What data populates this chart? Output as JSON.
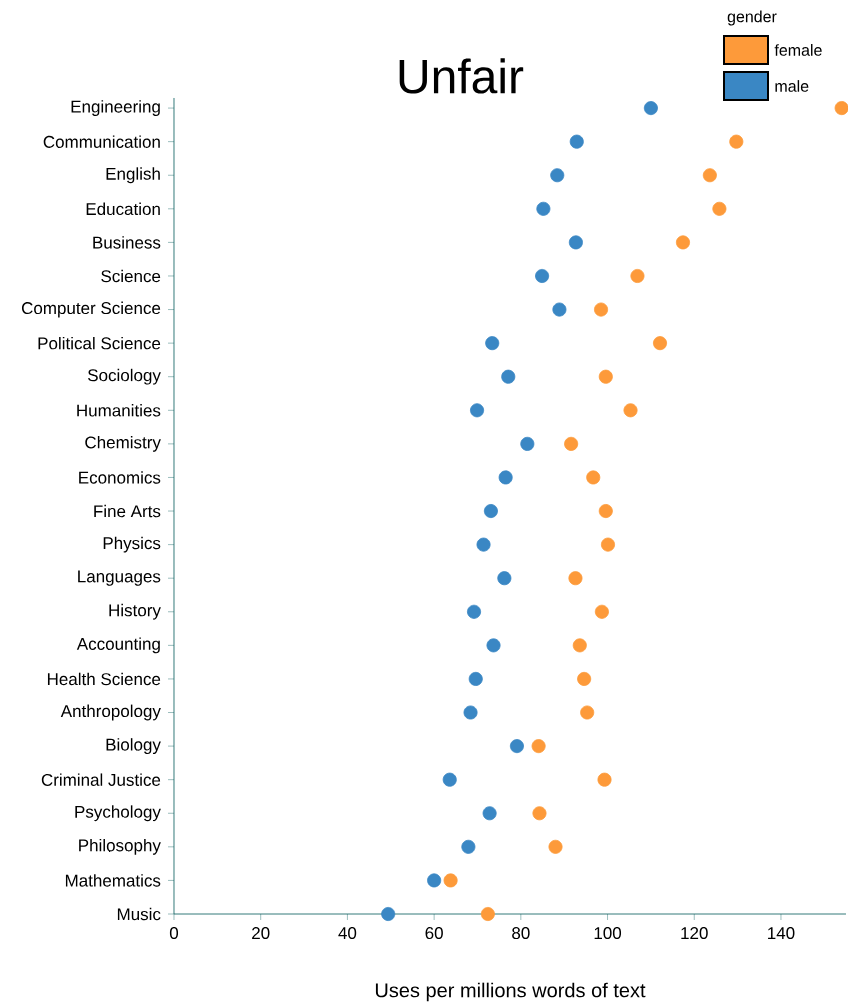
{
  "chart_data": {
    "type": "scatter",
    "title": "Unfair",
    "xlabel": "Uses per millions words of text",
    "legend_title": "gender",
    "legend": "top right",
    "orientation": "horizontal",
    "grid": false,
    "categories": [
      "Engineering",
      "Communication",
      "English",
      "Education",
      "Business",
      "Science",
      "Computer Science",
      "Political Science",
      "Sociology",
      "Humanities",
      "Chemistry",
      "Economics",
      "Fine Arts",
      "Physics",
      "Languages",
      "History",
      "Accounting",
      "Health Science",
      "Anthropology",
      "Biology",
      "Criminal Justice",
      "Psychology",
      "Philosophy",
      "Mathematics",
      "Music"
    ],
    "xlim": [
      0,
      155
    ],
    "xticks": [
      0,
      20,
      40,
      60,
      80,
      100,
      120,
      140
    ],
    "series": [
      {
        "name": "female",
        "color": "#fd9a3a",
        "values": [
          154,
          129.7,
          123.6,
          125.8,
          117.4,
          106.9,
          98.5,
          112.1,
          99.6,
          105.3,
          91.6,
          96.7,
          99.6,
          100.1,
          92.6,
          98.7,
          93.6,
          94.6,
          95.3,
          84.1,
          99.3,
          84.3,
          88.0,
          63.8,
          72.4
        ]
      },
      {
        "name": "male",
        "color": "#3a87c4",
        "values": [
          110,
          92.9,
          88.4,
          85.2,
          92.7,
          84.9,
          88.9,
          73.4,
          77.1,
          69.9,
          81.5,
          76.5,
          73.1,
          71.4,
          76.2,
          69.2,
          73.7,
          69.6,
          68.4,
          79.1,
          63.6,
          72.8,
          67.9,
          60.0,
          49.4
        ]
      }
    ]
  }
}
